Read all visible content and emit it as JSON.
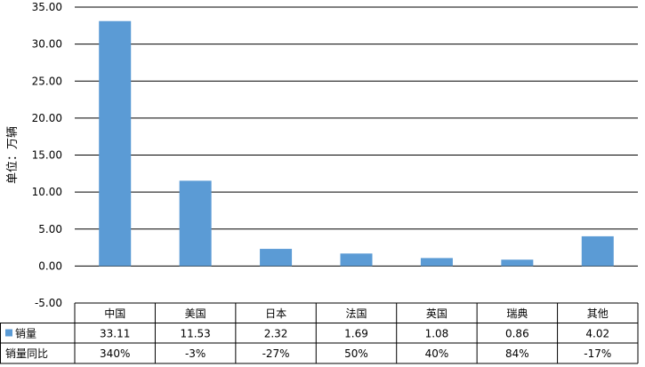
{
  "chart_data": {
    "type": "bar",
    "ylabel": "单位：万辆",
    "ylim": [
      -5,
      35
    ],
    "ytick_step": 5,
    "ytick_decimals": 2,
    "grid": true,
    "bar_color": "#5b9bd5",
    "categories": [
      "中国",
      "美国",
      "日本",
      "法国",
      "英国",
      "瑞典",
      "其他"
    ],
    "series": [
      {
        "name": "销量",
        "values": [
          33.11,
          11.53,
          2.32,
          1.69,
          1.08,
          0.86,
          4.02
        ],
        "display": [
          "33.11",
          "11.53",
          "2.32",
          "1.69",
          "1.08",
          "0.86",
          "4.02"
        ]
      }
    ],
    "table_rows": [
      {
        "label": "销量同比",
        "values": [
          "340%",
          "-3%",
          "-27%",
          "50%",
          "40%",
          "84%",
          "-17%"
        ]
      }
    ]
  }
}
